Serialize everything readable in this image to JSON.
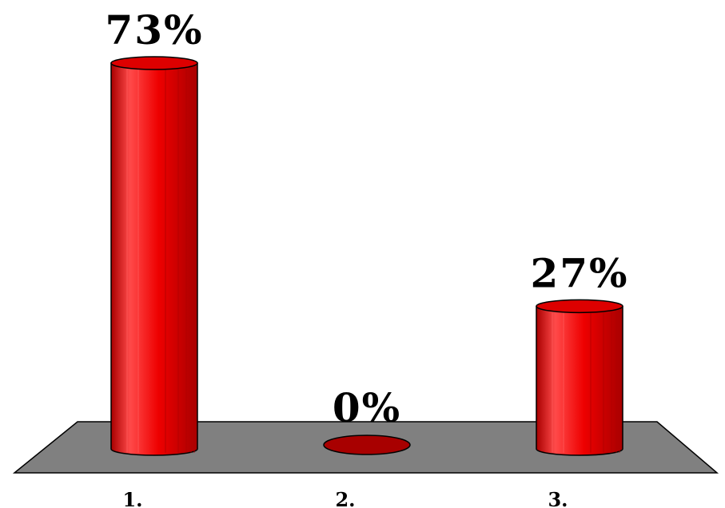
{
  "chart_data": {
    "type": "bar",
    "style": "3d-cylinder",
    "categories": [
      "1.",
      "2.",
      "3."
    ],
    "values": [
      73,
      0,
      27
    ],
    "value_labels": [
      "73%",
      "0%",
      "27%"
    ],
    "ylim": [
      0,
      73
    ],
    "title": "",
    "xlabel": "",
    "ylabel": "",
    "grid": false,
    "legend": "none",
    "colors": {
      "bar": "#ee0000",
      "bar_dark": "#a80000",
      "bar_light": "#ff4a4a",
      "bar_top": "#dd0000",
      "floor": "#808080",
      "outline": "#000000"
    }
  }
}
